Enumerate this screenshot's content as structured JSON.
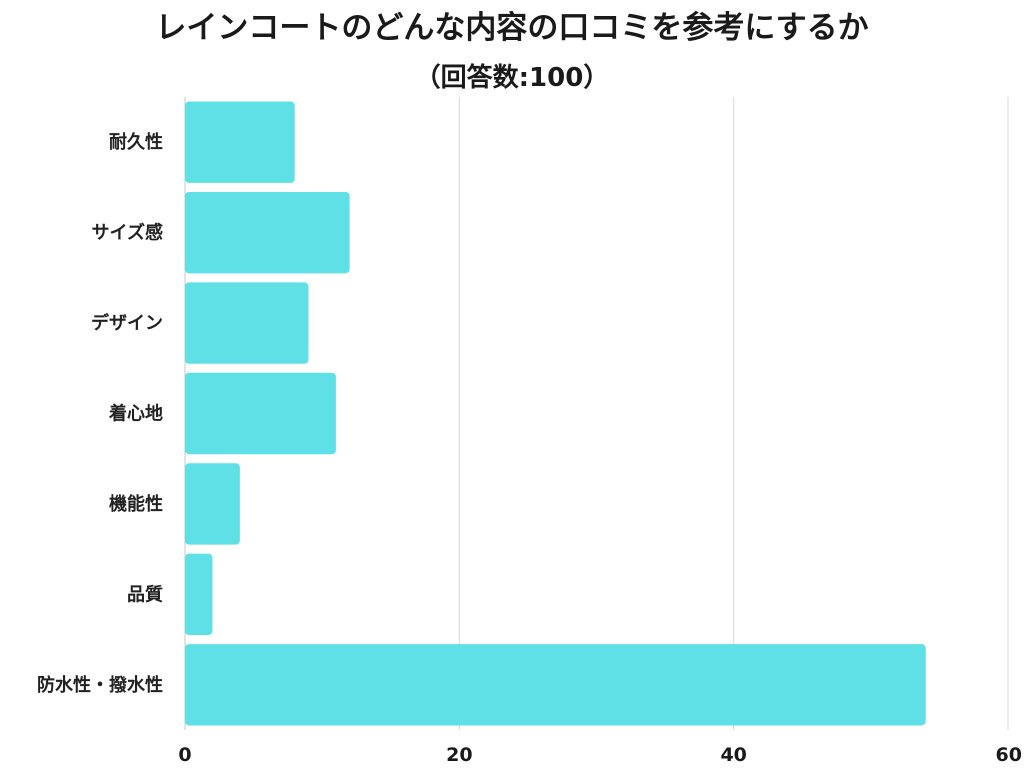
{
  "chart_data": {
    "type": "bar",
    "orientation": "horizontal",
    "title": "レインコートのどんな内容の口コミを参考にするか",
    "subtitle": "（回答数:100）",
    "categories": [
      "耐久性",
      "サイズ感",
      "デザイン",
      "着心地",
      "機能性",
      "品質",
      "防水性・撥水性"
    ],
    "values": [
      8,
      12,
      9,
      11,
      4,
      2,
      54
    ],
    "xlim": [
      0,
      60
    ],
    "xticks": [
      0,
      20,
      40,
      60
    ],
    "xtick_labels": [
      "0",
      "20",
      "40",
      "60"
    ],
    "grid": true,
    "bar_color": "#5ee0e6"
  }
}
